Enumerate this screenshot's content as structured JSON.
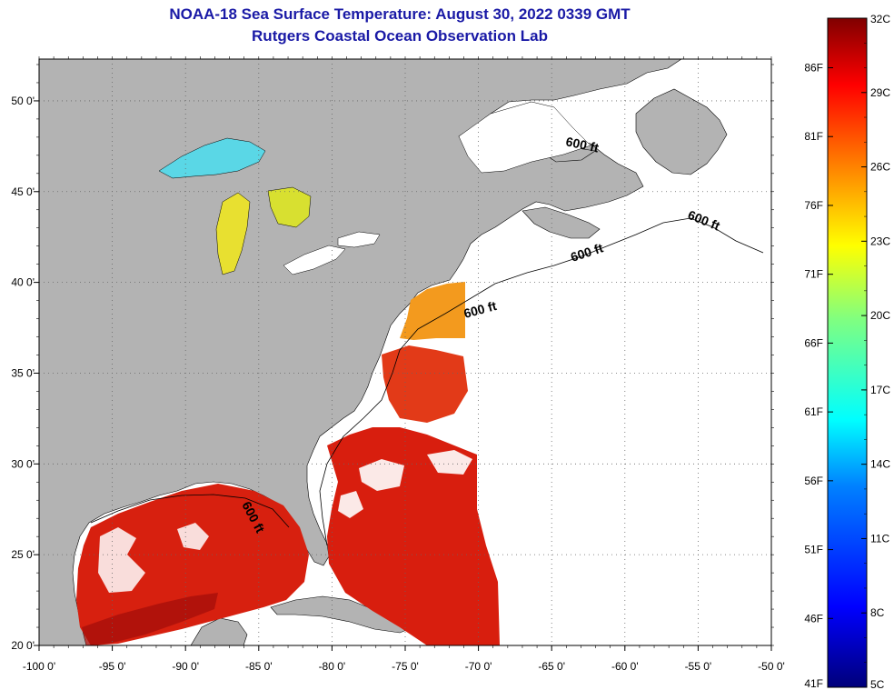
{
  "title": {
    "line1": "NOAA-18 Sea Surface Temperature:  August 30, 2022 0339 GMT",
    "line2": "Rutgers Coastal Ocean Observation Lab"
  },
  "map": {
    "lon_labels": [
      "-100 0'",
      "-95 0'",
      "-90 0'",
      "-85 0'",
      "-80 0'",
      "-75 0'",
      "-70 0'",
      "-65 0'",
      "-60 0'",
      "-55 0'",
      "-50 0'"
    ],
    "lon_values": [
      -100,
      -95,
      -90,
      -85,
      -80,
      -75,
      -70,
      -65,
      -60,
      -55,
      -50
    ],
    "lat_labels": [
      "20 0'",
      "25 0'",
      "30 0'",
      "35 0'",
      "40 0'",
      "45 0'",
      "50 0'"
    ],
    "lat_values": [
      20,
      25,
      30,
      35,
      40,
      45,
      50
    ],
    "lon_range": [
      -100,
      -50
    ],
    "lat_range": [
      20,
      52.3
    ],
    "grid": "dotted",
    "contour_labels": [
      "600 ft",
      "600 ft",
      "600 ft",
      "600 ft",
      "600 ft"
    ],
    "colors": {
      "land": "#b3b3b3",
      "no_data": "#ffffff",
      "frame": "#000000"
    }
  },
  "colorbar": {
    "celsius_labels": [
      "32C",
      "29C",
      "26C",
      "23C",
      "20C",
      "17C",
      "14C",
      "11C",
      "8C",
      "5C"
    ],
    "celsius_values": [
      32,
      29,
      26,
      23,
      20,
      17,
      14,
      11,
      8,
      5
    ],
    "fahrenheit_labels": [
      "86F",
      "81F",
      "76F",
      "71F",
      "66F",
      "61F",
      "56F",
      "51F",
      "46F",
      "41F"
    ],
    "fahrenheit_values": [
      86,
      81,
      76,
      71,
      66,
      61,
      56,
      51,
      46,
      41
    ],
    "range_c": [
      5,
      32
    ],
    "colormap": [
      "#00007a",
      "#0000ff",
      "#0080ff",
      "#00ffff",
      "#80ff80",
      "#ffff00",
      "#ff8000",
      "#ff0000",
      "#800000"
    ]
  }
}
